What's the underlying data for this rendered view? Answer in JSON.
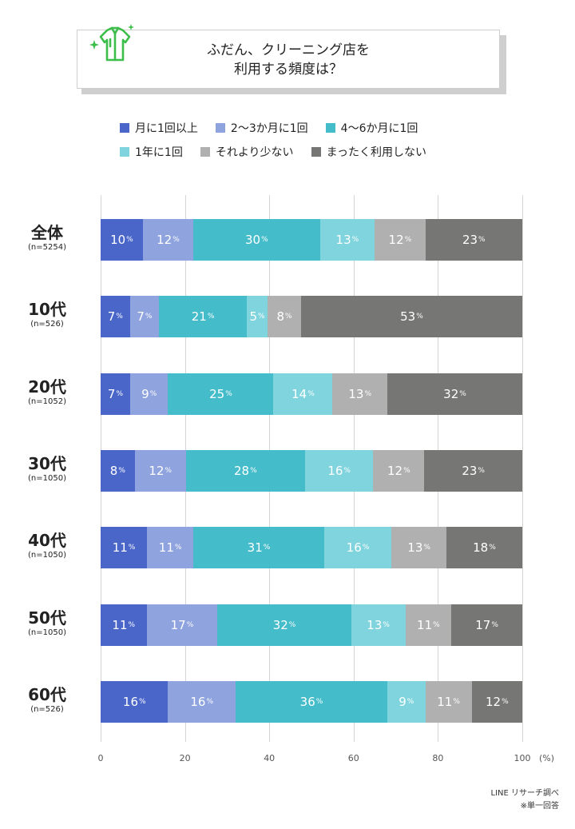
{
  "title": "ふだん、クリーニング店を\n利用する頻度は？",
  "colors": {
    "series": [
      "#4a66c9",
      "#8fa3de",
      "#45bcca",
      "#80d4dd",
      "#b0b0b0",
      "#767674"
    ],
    "icon": "#3dbd4a"
  },
  "footer": {
    "source": "LINE リサーチ調べ",
    "note": "※単一回答"
  },
  "chart_data": {
    "type": "bar",
    "orientation": "horizontal",
    "stacked": true,
    "categories": [
      "全体",
      "10代",
      "20代",
      "30代",
      "40代",
      "50代",
      "60代"
    ],
    "sample_sizes": [
      "(n=5254)",
      "(n=526)",
      "(n=1052)",
      "(n=1050)",
      "(n=1050)",
      "(n=1050)",
      "(n=526)"
    ],
    "series": [
      {
        "name": "月に1回以上",
        "values": [
          10,
          7,
          7,
          8,
          11,
          11,
          16
        ]
      },
      {
        "name": "2〜3か月に1回",
        "values": [
          12,
          7,
          9,
          12,
          11,
          17,
          16
        ]
      },
      {
        "name": "4〜6か月に1回",
        "values": [
          30,
          21,
          25,
          28,
          31,
          32,
          36
        ]
      },
      {
        "name": "1年に1回",
        "values": [
          13,
          5,
          14,
          16,
          16,
          13,
          9
        ]
      },
      {
        "name": "それより少ない",
        "values": [
          12,
          8,
          13,
          12,
          13,
          11,
          11
        ]
      },
      {
        "name": "まったく利用しない",
        "values": [
          23,
          53,
          32,
          23,
          18,
          17,
          12
        ]
      }
    ],
    "value_suffix": "%",
    "xlim": [
      0,
      100
    ],
    "xticks": [
      "0",
      "20",
      "40",
      "60",
      "80",
      "100"
    ],
    "xunit": "(%)",
    "legend_position": "top",
    "grid": true
  }
}
